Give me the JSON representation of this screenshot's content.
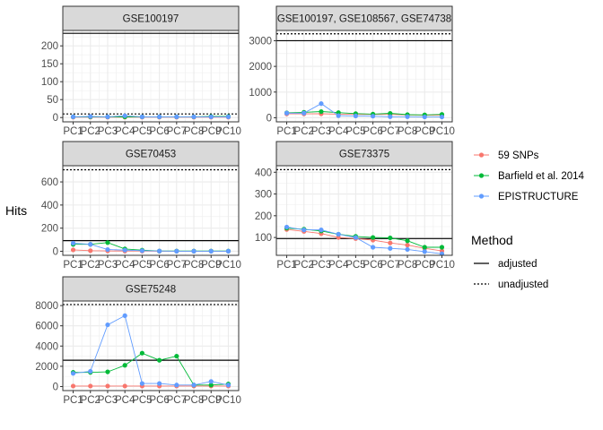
{
  "chart_data": {
    "type": "line",
    "ylabel": "Hits",
    "categories": [
      "PC1",
      "PC2",
      "PC3",
      "PC4",
      "PC5",
      "PC6",
      "PC7",
      "PC8",
      "PC9",
      "PC10"
    ],
    "series_colors": {
      "59 SNPs": "#f8766d",
      "Barfield et al. 2014": "#00ba38",
      "EPISTRUCTURE": "#619cff"
    },
    "legend": {
      "series_title": "",
      "series": [
        "59 SNPs",
        "Barfield et al. 2014",
        "EPISTRUCTURE"
      ],
      "method_title": "Method",
      "methods": [
        "adjusted",
        "unadjusted"
      ],
      "placement": "right"
    },
    "panels": [
      {
        "title": "GSE100197",
        "ylim": [
          -12,
          243
        ],
        "yticks": [
          0,
          50,
          100,
          150,
          200
        ],
        "adjusted": 235,
        "unadjusted": 10,
        "series": [
          {
            "name": "59 SNPs",
            "values": [
              1,
              1,
              1,
              1,
              1,
              1,
              1,
              1,
              1,
              1
            ]
          },
          {
            "name": "Barfield et al. 2014",
            "values": [
              2,
              2,
              2,
              2,
              2,
              2,
              2,
              2,
              3,
              3
            ]
          },
          {
            "name": "EPISTRUCTURE",
            "values": [
              2,
              3,
              2,
              5,
              2,
              2,
              2,
              2,
              2,
              2
            ]
          }
        ]
      },
      {
        "title": "GSE100197, GSE108567, GSE74738",
        "ylim": [
          -160,
          3400
        ],
        "yticks": [
          0,
          1000,
          2000,
          3000
        ],
        "adjusted": 3000,
        "unadjusted": 3270,
        "series": [
          {
            "name": "59 SNPs",
            "values": [
              150,
              150,
              155,
              140,
              130,
              130,
              130,
              110,
              100,
              100
            ]
          },
          {
            "name": "Barfield et al. 2014",
            "values": [
              190,
              210,
              240,
              200,
              160,
              140,
              170,
              120,
              110,
              130
            ]
          },
          {
            "name": "EPISTRUCTURE",
            "values": [
              180,
              180,
              550,
              80,
              70,
              60,
              40,
              40,
              30,
              30
            ]
          }
        ]
      },
      {
        "title": "GSE70453",
        "ylim": [
          -35,
          740
        ],
        "yticks": [
          0,
          200,
          400,
          600
        ],
        "adjusted": 92,
        "unadjusted": 705,
        "series": [
          {
            "name": "59 SNPs",
            "values": [
              12,
              5,
              3,
              2,
              2,
              1,
              1,
              1,
              1,
              1
            ]
          },
          {
            "name": "Barfield et al. 2014",
            "values": [
              60,
              60,
              75,
              20,
              10,
              2,
              2,
              2,
              2,
              2
            ]
          },
          {
            "name": "EPISTRUCTURE",
            "values": [
              70,
              60,
              15,
              10,
              5,
              2,
              1,
              1,
              1,
              1
            ]
          }
        ]
      },
      {
        "title": "GSE73375",
        "ylim": [
          18,
          430
        ],
        "yticks": [
          100,
          200,
          300,
          400
        ],
        "adjusted": 95,
        "unadjusted": 412,
        "series": [
          {
            "name": "59 SNPs",
            "values": [
              137,
              128,
              118,
              100,
              95,
              88,
              75,
              65,
              50,
              38
            ]
          },
          {
            "name": "Barfield et al. 2014",
            "values": [
              143,
              138,
              130,
              115,
              105,
              100,
              98,
              85,
              55,
              55
            ]
          },
          {
            "name": "EPISTRUCTURE",
            "values": [
              148,
              135,
              135,
              115,
              100,
              55,
              50,
              45,
              35,
              25
            ]
          }
        ]
      },
      {
        "title": "GSE75248",
        "ylim": [
          -400,
          8450
        ],
        "yticks": [
          0,
          2000,
          4000,
          6000,
          8000
        ],
        "adjusted": 2600,
        "unadjusted": 8100,
        "series": [
          {
            "name": "59 SNPs",
            "values": [
              50,
              50,
              50,
              50,
              50,
              50,
              50,
              50,
              50,
              50
            ]
          },
          {
            "name": "Barfield et al. 2014",
            "values": [
              1400,
              1400,
              1450,
              2100,
              3300,
              2600,
              3000,
              150,
              150,
              250
            ]
          },
          {
            "name": "EPISTRUCTURE",
            "values": [
              1300,
              1500,
              6100,
              7000,
              300,
              300,
              150,
              150,
              500,
              150
            ]
          }
        ]
      }
    ]
  }
}
